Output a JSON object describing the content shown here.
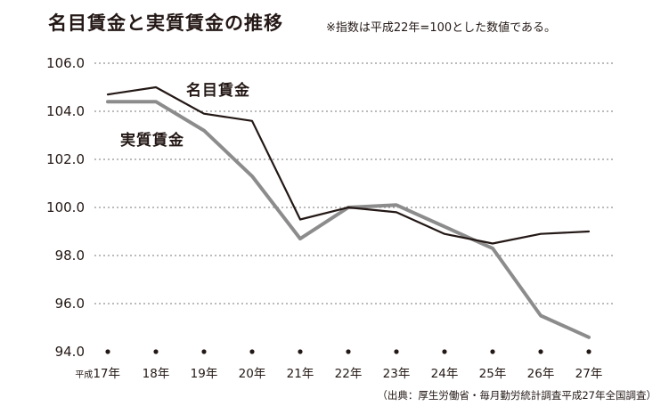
{
  "header": {
    "title": "名目賃金と実質賃金の推移",
    "note": "※指数は平成22年=100とした数値である。"
  },
  "footer": {
    "source": "（出典：厚生労働省・毎月勤労統計調査平成27年全国調査）"
  },
  "chart_data": {
    "type": "line",
    "title": "名目賃金と実質賃金の推移",
    "x_prefix_first": "平成",
    "categories": [
      "17年",
      "18年",
      "19年",
      "20年",
      "21年",
      "22年",
      "23年",
      "24年",
      "25年",
      "26年",
      "27年"
    ],
    "series": [
      {
        "name": "名目賃金",
        "values": [
          104.7,
          105.0,
          103.9,
          103.6,
          99.5,
          100.0,
          99.8,
          98.9,
          98.5,
          98.9,
          99.0
        ],
        "color": "#231815"
      },
      {
        "name": "実質賃金",
        "values": [
          104.4,
          104.4,
          103.2,
          101.3,
          98.7,
          100.0,
          100.1,
          99.2,
          98.3,
          95.5,
          94.6
        ],
        "color": "#8c8c8c"
      }
    ],
    "yticks": [
      "106.0",
      "104.0",
      "102.0",
      "100.0",
      "98.0",
      "96.0",
      "94.0"
    ],
    "ylim": [
      94.0,
      106.0
    ],
    "grid": "dotted horizontal",
    "legend": "inline labels"
  }
}
